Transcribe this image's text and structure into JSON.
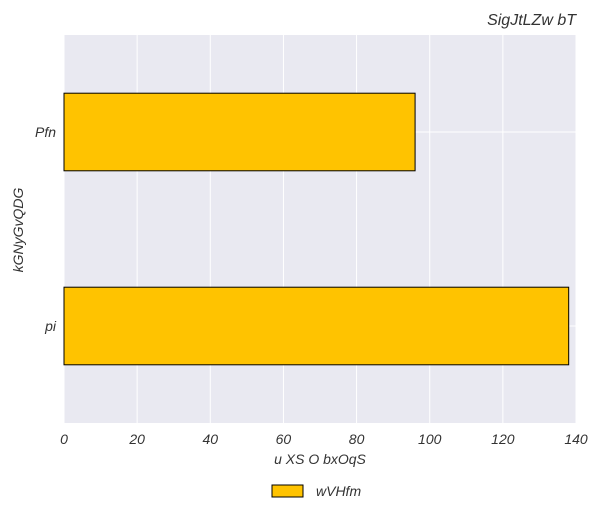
{
  "chart_data": {
    "type": "bar",
    "orientation": "horizontal",
    "title": "SigJtLZw bT",
    "xlabel": "u XS O bxOqS",
    "ylabel": "kGNyGvQDG",
    "categories": [
      "Pfn",
      "pi"
    ],
    "series": [
      {
        "name": "wVHfm",
        "values": [
          96,
          138
        ],
        "color": "#ffc300"
      }
    ],
    "xlim": [
      0,
      140
    ],
    "xticks": [
      "0",
      "20",
      "40",
      "60",
      "80",
      "100",
      "120",
      "140"
    ],
    "grid": true,
    "legend_position": "bottom-center",
    "plot_background": "#e9e9f1"
  }
}
